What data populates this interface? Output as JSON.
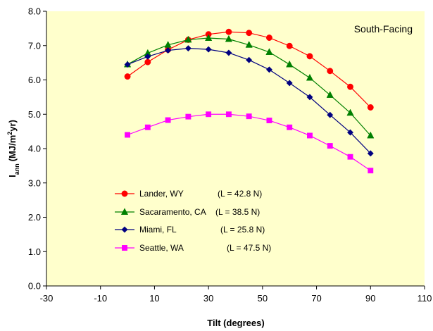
{
  "chart_data": {
    "type": "line",
    "annotation": "South-Facing",
    "xlabel": "Tilt  (degrees)",
    "ylabel": {
      "main": "I",
      "subscript": "ann",
      "unit_prefix": "(MJ/m",
      "superscript": "2",
      "unit_suffix": "yr)"
    },
    "xlim": [
      -30,
      110
    ],
    "ylim": [
      0,
      8
    ],
    "xticks": [
      -30,
      -10,
      10,
      30,
      50,
      70,
      90,
      110
    ],
    "yticks": [
      "0.0",
      "1.0",
      "2.0",
      "3.0",
      "4.0",
      "5.0",
      "6.0",
      "7.0",
      "8.0"
    ],
    "grid": false,
    "legend_position": "lower-left",
    "plot_background": "#ffffcc",
    "x": [
      0,
      7.5,
      15,
      22.5,
      30,
      37.5,
      45,
      52.5,
      60,
      67.5,
      75,
      82.5,
      90
    ],
    "series": [
      {
        "name": "Lander, WY",
        "latitude_label": "(L = 42.8 N)",
        "color": "#ff0000",
        "marker": "circle",
        "values": [
          6.1,
          6.52,
          6.88,
          7.17,
          7.33,
          7.4,
          7.37,
          7.23,
          6.99,
          6.69,
          6.26,
          5.8,
          5.2
        ]
      },
      {
        "name": "Sacaramento, CA",
        "latitude_label": "(L = 38.5 N)",
        "color": "#008000",
        "marker": "triangle",
        "values": [
          6.45,
          6.78,
          7.02,
          7.17,
          7.22,
          7.19,
          7.02,
          6.81,
          6.45,
          6.06,
          5.56,
          5.04,
          4.38
        ]
      },
      {
        "name": "Miami, FL",
        "latitude_label": "(L = 25.8 N)",
        "color": "#000080",
        "marker": "diamond",
        "values": [
          6.45,
          6.68,
          6.86,
          6.92,
          6.89,
          6.79,
          6.58,
          6.3,
          5.91,
          5.5,
          4.98,
          4.47,
          3.86
        ]
      },
      {
        "name": "Seattle, WA",
        "latitude_label": "(L = 47.5 N)",
        "color": "#ff00ff",
        "marker": "square",
        "values": [
          4.4,
          4.62,
          4.83,
          4.93,
          5.0,
          5.0,
          4.94,
          4.82,
          4.62,
          4.38,
          4.08,
          3.76,
          3.36
        ]
      }
    ]
  }
}
